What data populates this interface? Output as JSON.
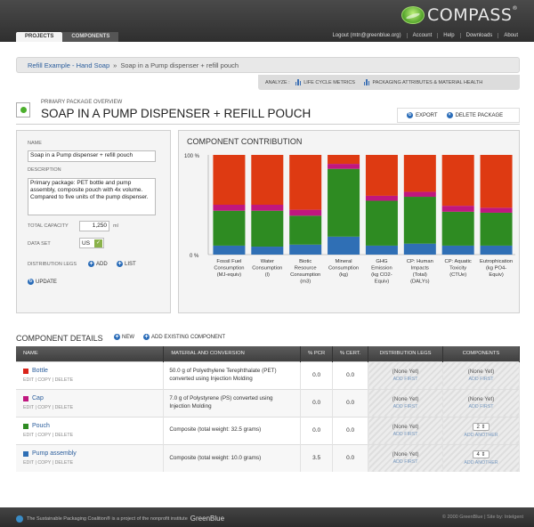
{
  "app": {
    "logo_text": "COMPASS",
    "logo_mark": "®",
    "nav_tabs": [
      {
        "label": "PROJECTS",
        "active": true
      },
      {
        "label": "COMPONENTS",
        "active": false
      }
    ],
    "top_links": [
      "Logout (mtn@greenblue.org)",
      "Account",
      "Help",
      "Downloads",
      "About"
    ]
  },
  "breadcrumb": {
    "parent": "Refill Example - Hand Soap",
    "separator": "»",
    "current": "Soap in a Pump dispenser + refill pouch"
  },
  "analyze": {
    "label": "ANALYZE :",
    "items": [
      "LIFE CYCLE METRICS",
      "PACKAGING ATTRIBUTES & MATERIAL HEALTH"
    ]
  },
  "header": {
    "overline": "PRIMARY PACKAGE OVERVIEW",
    "title": "SOAP IN A PUMP DISPENSER + REFILL POUCH",
    "actions": [
      "EXPORT",
      "DELETE PACKAGE"
    ]
  },
  "form": {
    "name_label": "NAME",
    "name_value": "Soap in a Pump dispenser + refill pouch",
    "desc_label": "DESCRIPTION",
    "desc_value": "Primary package: PET bottle and pump assembly, composite pouch with 4x volume. Compared to five units of the pump dispenser.",
    "capacity_label": "TOTAL CAPACITY",
    "capacity_value": "1,250",
    "capacity_unit": "ml",
    "dataset_label": "DATA SET",
    "dataset_value": "US",
    "legs_label": "DISTRIBUTION LEGS",
    "add_label": "ADD",
    "list_label": "LIST",
    "update_label": "UPDATE"
  },
  "chart_data": {
    "type": "bar",
    "stacked": true,
    "title": "COMPONENT CONTRIBUTION",
    "ytick_labels": [
      "100 %",
      "0 %"
    ],
    "ylim": [
      0,
      100
    ],
    "categories": [
      "Fossil Fuel Consumption (MJ-equiv)",
      "Water Consumption (l)",
      "Biotic Resource Consumption (m3)",
      "Mineral Consumption (kg)",
      "GHG Emission (kg CO2-Equiv)",
      "CP: Human Impacts (Total) (DALYs)",
      "CP: Aquatic Toxicity (CTUe)",
      "Eutrophication (kg PO4-Equiv)"
    ],
    "category_lines": [
      [
        "Fossil Fuel",
        "Consumption",
        "(MJ-equiv)"
      ],
      [
        "Water",
        "Consumption",
        "(l)"
      ],
      [
        "Biotic",
        "Resource",
        "Consumption",
        "(m3)"
      ],
      [
        "Mineral",
        "Consumption",
        "(kg)"
      ],
      [
        "GHG",
        "Emission",
        "(kg CO2-",
        "Equiv)"
      ],
      [
        "CP: Human",
        "Impacts",
        "(Total)",
        "(DALYs)"
      ],
      [
        "CP: Aquatic",
        "Toxicity",
        "(CTUe)"
      ],
      [
        "Eutrophication",
        "(kg PO4-",
        "Equiv)"
      ]
    ],
    "series": [
      {
        "key": "pump",
        "color": "#2f6fb5",
        "values": [
          9,
          8,
          10,
          18,
          9,
          11,
          9,
          9
        ]
      },
      {
        "key": "pouch",
        "color": "#2e8b22",
        "values": [
          35,
          36,
          29,
          68,
          45,
          47,
          34,
          33
        ]
      },
      {
        "key": "cap",
        "color": "#c0177f",
        "values": [
          6,
          6,
          6,
          5,
          5,
          5,
          6,
          5
        ]
      },
      {
        "key": "bottle",
        "color": "#de3a12",
        "values": [
          50,
          50,
          55,
          9,
          41,
          37,
          51,
          53
        ]
      }
    ]
  },
  "components": {
    "title": "COMPONENT DETAILS",
    "new_label": "NEW",
    "add_existing_label": "ADD EXISTING COMPONENT",
    "columns": [
      "NAME",
      "MATERIAL AND CONVERSION",
      "% PCR",
      "% CERT.",
      "DISTRIBUTION LEGS",
      "COMPONENTS"
    ],
    "row_links": [
      "EDIT",
      "COPY",
      "DELETE"
    ],
    "rows": [
      {
        "name": "Bottle",
        "color": "#d9241a",
        "material": "50.0 g of Polyethylene Terephthalate (PET) converted using Injection Molding",
        "pcr": "0.0",
        "cert": "0.0",
        "legs": "(None Yet)",
        "legs_link": "ADD FIRST",
        "comp": "(None Yet)",
        "comp_link": "ADD FIRST"
      },
      {
        "name": "Cap",
        "color": "#c0177f",
        "material": "7.0 g of Polystyrene (PS) converted using Injection Molding",
        "pcr": "0.0",
        "cert": "0.0",
        "legs": "(None Yet)",
        "legs_link": "ADD FIRST",
        "comp": "(None Yet)",
        "comp_link": "ADD FIRST"
      },
      {
        "name": "Pouch",
        "color": "#2e8b22",
        "material": "Composite (total weight: 32.5 grams)",
        "pcr": "0.0",
        "cert": "0.0",
        "legs": "(None Yet)",
        "legs_link": "ADD FIRST",
        "comp": "2",
        "comp_link": "ADD ANOTHER"
      },
      {
        "name": "Pump assembly",
        "color": "#2f6fb5",
        "material": "Composite (total weight: 10.0 grams)",
        "pcr": "3.5",
        "cert": "0.0",
        "legs": "(None Yet)",
        "legs_link": "ADD FIRST",
        "comp": "4",
        "comp_link": "ADD ANOTHER"
      }
    ]
  },
  "footer": {
    "left": "The Sustainable Packaging Coalition® is a project of the nonprofit institute",
    "brand": "GreenBlue",
    "right": "© 2000 GreenBlue | Site by: Intelgent"
  }
}
